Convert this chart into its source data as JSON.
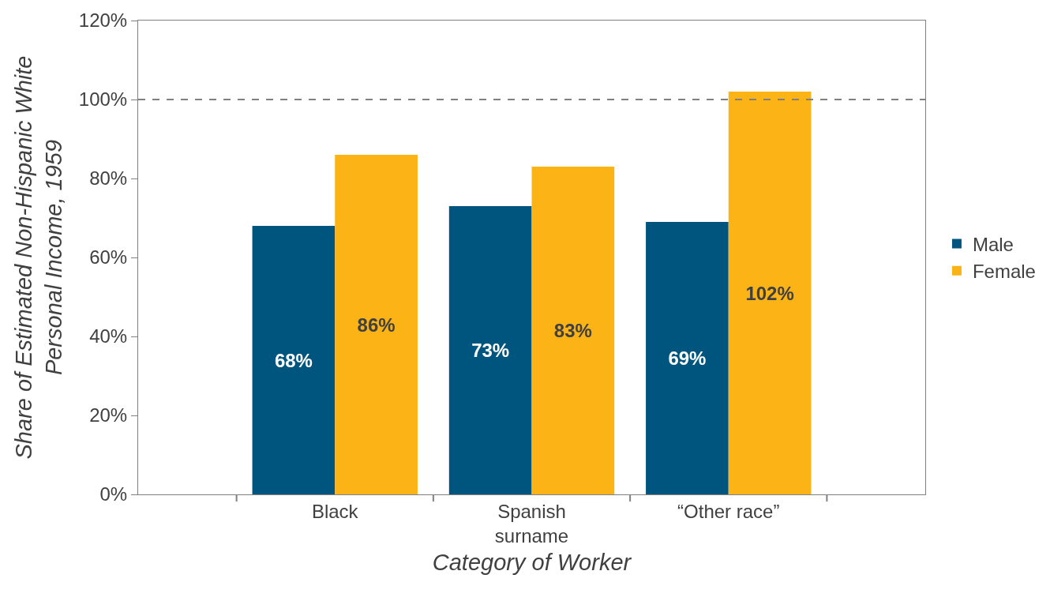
{
  "chart_data": {
    "type": "bar",
    "xlabel": "Category of Worker",
    "ylabel": "Share of Estimated Non-Hispanic White Personal Income, 1959",
    "categories": [
      "Black",
      "Spanish surname",
      "“Other race”"
    ],
    "series": [
      {
        "name": "Male",
        "color": "#00557f",
        "values": [
          68,
          73,
          69
        ]
      },
      {
        "name": "Female",
        "color": "#fbb316",
        "values": [
          86,
          83,
          102
        ]
      }
    ],
    "ylim": [
      0,
      120
    ],
    "yticks": [
      {
        "value": 0,
        "label": "0%"
      },
      {
        "value": 20,
        "label": "20%"
      },
      {
        "value": 40,
        "label": "40%"
      },
      {
        "value": 60,
        "label": "60%"
      },
      {
        "value": 80,
        "label": "80%"
      },
      {
        "value": 100,
        "label": "100%"
      },
      {
        "value": 120,
        "label": "120%"
      }
    ],
    "value_labels": [
      [
        "68%",
        "73%",
        "69%"
      ],
      [
        "86%",
        "83%",
        "102%"
      ]
    ],
    "ref_lines": [
      {
        "axis": "y",
        "value": 100,
        "color": "#808080",
        "line_style": "dashed"
      }
    ],
    "legend": "right"
  }
}
